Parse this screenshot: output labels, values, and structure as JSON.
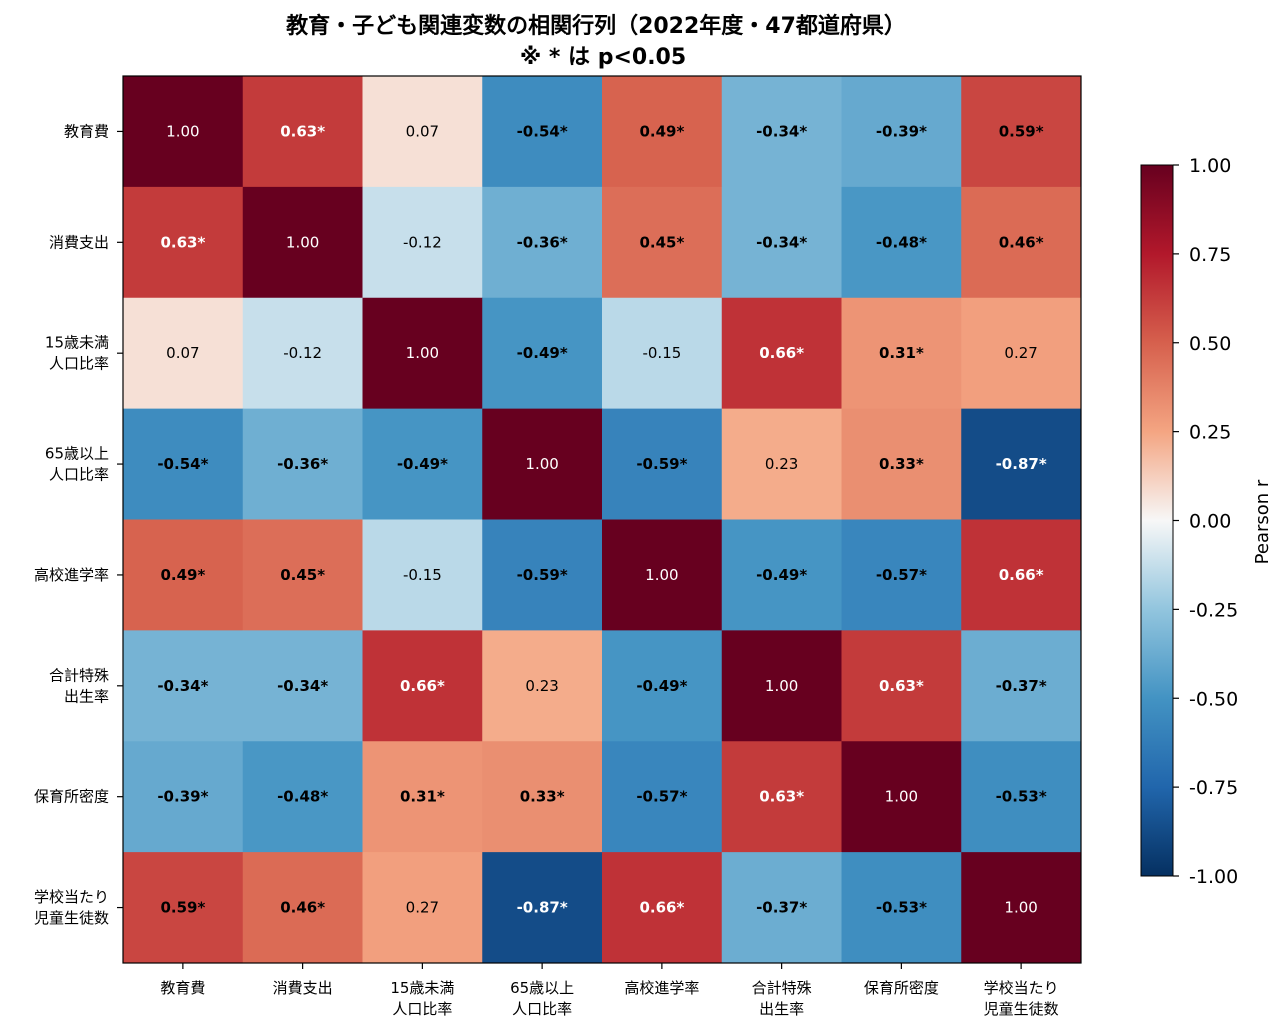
{
  "chart_data": {
    "type": "heatmap",
    "title": "教育・子ども関連変数の相関行列（2022年度・47都道府県）",
    "subtitle": "※ * は p<0.05",
    "row_labels": [
      [
        "教育費"
      ],
      [
        "消費支出"
      ],
      [
        "15歳未満",
        "人口比率"
      ],
      [
        "65歳以上",
        "人口比率"
      ],
      [
        "高校進学率"
      ],
      [
        "合計特殊",
        "出生率"
      ],
      [
        "保育所密度"
      ],
      [
        "学校当たり",
        "児童生徒数"
      ]
    ],
    "col_labels": [
      [
        "教育費"
      ],
      [
        "消費支出"
      ],
      [
        "15歳未満",
        "人口比率"
      ],
      [
        "65歳以上",
        "人口比率"
      ],
      [
        "高校進学率"
      ],
      [
        "合計特殊",
        "出生率"
      ],
      [
        "保育所密度"
      ],
      [
        "学校当たり",
        "児童生徒数"
      ]
    ],
    "values": [
      [
        1.0,
        0.63,
        0.07,
        -0.54,
        0.49,
        -0.34,
        -0.39,
        0.59
      ],
      [
        0.63,
        1.0,
        -0.12,
        -0.36,
        0.45,
        -0.34,
        -0.48,
        0.46
      ],
      [
        0.07,
        -0.12,
        1.0,
        -0.49,
        -0.15,
        0.66,
        0.31,
        0.27
      ],
      [
        -0.54,
        -0.36,
        -0.49,
        1.0,
        -0.59,
        0.23,
        0.33,
        -0.87
      ],
      [
        0.49,
        0.45,
        -0.15,
        -0.59,
        1.0,
        -0.49,
        -0.57,
        0.66
      ],
      [
        -0.34,
        -0.34,
        0.66,
        0.23,
        -0.49,
        1.0,
        0.63,
        -0.37
      ],
      [
        -0.39,
        -0.48,
        0.31,
        0.33,
        -0.57,
        0.63,
        1.0,
        -0.53
      ],
      [
        0.59,
        0.46,
        0.27,
        -0.87,
        0.66,
        -0.37,
        -0.53,
        1.0
      ]
    ],
    "significant": [
      [
        false,
        true,
        false,
        true,
        true,
        true,
        true,
        true
      ],
      [
        true,
        false,
        false,
        true,
        true,
        true,
        true,
        true
      ],
      [
        false,
        false,
        false,
        true,
        false,
        true,
        true,
        false
      ],
      [
        true,
        true,
        true,
        false,
        true,
        false,
        true,
        true
      ],
      [
        true,
        true,
        false,
        true,
        false,
        true,
        true,
        true
      ],
      [
        true,
        true,
        true,
        false,
        true,
        false,
        true,
        true
      ],
      [
        true,
        true,
        true,
        true,
        true,
        true,
        false,
        true
      ],
      [
        true,
        true,
        false,
        true,
        true,
        true,
        true,
        false
      ]
    ],
    "colormap": "RdBu_r",
    "vlim": [
      -1.0,
      1.0
    ],
    "colorbar": {
      "label": "Pearson r",
      "ticks": [
        "1.00",
        "0.75",
        "0.50",
        "0.25",
        "0.00",
        "-0.25",
        "-0.50",
        "-0.75",
        "-1.00"
      ]
    },
    "grid": false
  }
}
